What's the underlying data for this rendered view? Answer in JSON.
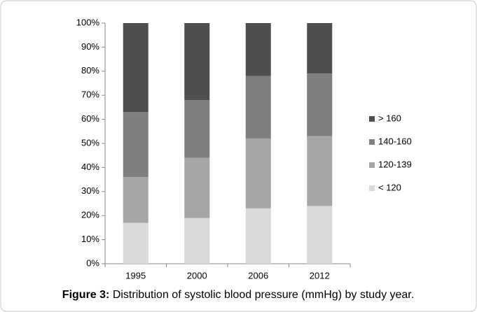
{
  "chart_data": {
    "type": "stacked_bar",
    "categories": [
      "1995",
      "2000",
      "2006",
      "2012"
    ],
    "series": [
      {
        "name": "< 120",
        "color": "#d9d9d9",
        "values": [
          17,
          19,
          23,
          24
        ]
      },
      {
        "name": "120-139",
        "color": "#a6a6a6",
        "values": [
          19,
          25,
          29,
          29
        ]
      },
      {
        "name": "140-160",
        "color": "#7f7f7f",
        "values": [
          27,
          24,
          26,
          26
        ]
      },
      {
        "name": "> 160",
        "color": "#4f4f4f",
        "values": [
          37,
          32,
          22,
          21
        ]
      }
    ],
    "ylim": [
      0,
      100
    ],
    "yticks": [
      {
        "value": 0,
        "label": "0%"
      },
      {
        "value": 10,
        "label": "10%"
      },
      {
        "value": 20,
        "label": "20%"
      },
      {
        "value": 30,
        "label": "30%"
      },
      {
        "value": 40,
        "label": "40%"
      },
      {
        "value": 50,
        "label": "50%"
      },
      {
        "value": 60,
        "label": "60%"
      },
      {
        "value": 70,
        "label": "70%"
      },
      {
        "value": 80,
        "label": "80%"
      },
      {
        "value": 90,
        "label": "90%"
      },
      {
        "value": 100,
        "label": "100%"
      }
    ],
    "grid": false,
    "legend": "right",
    "caption_label": "Figure 3:",
    "caption": "Distribution of systolic blood pressure (mmHg) by study year."
  }
}
